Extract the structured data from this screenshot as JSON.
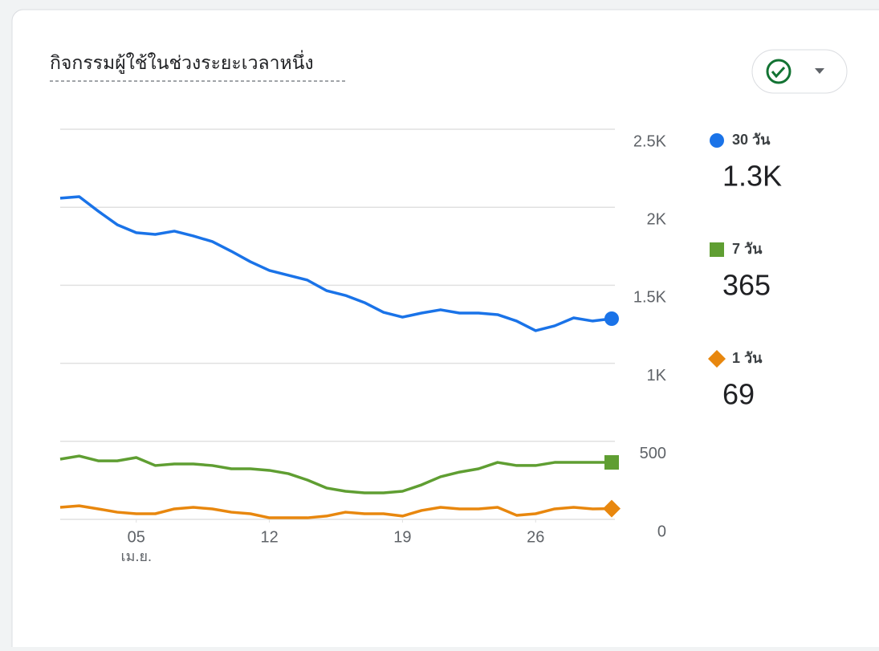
{
  "chart_data": {
    "type": "line",
    "title": "กิจกรรมผู้ใช้ในช่วงระยะเวลาหนึ่ง",
    "x": [
      1,
      2,
      3,
      4,
      5,
      6,
      7,
      8,
      9,
      10,
      11,
      12,
      13,
      14,
      15,
      16,
      17,
      18,
      19,
      20,
      21,
      22,
      23,
      24,
      25,
      26,
      27,
      28,
      29,
      30
    ],
    "xlim": [
      1,
      30
    ],
    "xticks": [
      {
        "value": 5,
        "label": "05"
      },
      12,
      19,
      26
    ],
    "x_sublabel": "เม.ย.",
    "ylim": [
      0,
      2500
    ],
    "yticks": [
      0,
      500,
      {
        "value": 1000,
        "label": "1K"
      },
      {
        "value": 1500,
        "label": "1.5K"
      },
      {
        "value": 2000,
        "label": "2K"
      },
      {
        "value": 2500,
        "label": "2.5K"
      }
    ],
    "grid": true,
    "series": [
      {
        "name": "30 วัน",
        "color": "#1a73e8",
        "marker": "circle",
        "legend_value": "1.3K",
        "values": [
          2058,
          2068,
          1975,
          1888,
          1837,
          1826,
          1847,
          1816,
          1780,
          1718,
          1651,
          1595,
          1564,
          1533,
          1466,
          1435,
          1389,
          1327,
          1296,
          1322,
          1343,
          1322,
          1322,
          1312,
          1271,
          1209,
          1240,
          1291,
          1271,
          1286
        ]
      },
      {
        "name": "7 วัน",
        "color": "#5f9e32",
        "marker": "square",
        "legend_value": "365",
        "values": [
          386,
          406,
          375,
          375,
          396,
          345,
          355,
          355,
          345,
          324,
          324,
          314,
          293,
          252,
          201,
          180,
          170,
          170,
          180,
          221,
          273,
          303,
          324,
          365,
          345,
          345,
          365,
          365,
          365,
          365
        ]
      },
      {
        "name": "1 วัน",
        "color": "#e8870e",
        "marker": "diamond",
        "legend_value": "69",
        "values": [
          77,
          87,
          67,
          46,
          36,
          36,
          67,
          77,
          67,
          46,
          36,
          10,
          10,
          10,
          21,
          46,
          36,
          36,
          21,
          57,
          77,
          67,
          67,
          77,
          26,
          36,
          67,
          77,
          67,
          69
        ]
      }
    ]
  }
}
